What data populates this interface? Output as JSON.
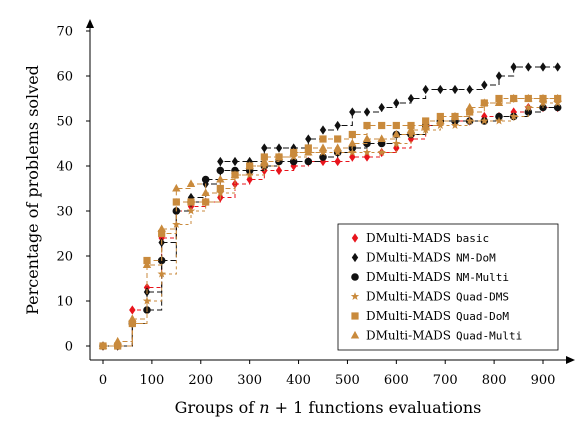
{
  "chart_data": {
    "type": "line",
    "title": "",
    "xlabel": "Groups of n + 1 functions evaluations",
    "xlabel_parts": [
      "Groups of ",
      "n",
      " + 1 functions evaluations"
    ],
    "ylabel": "Percentage of problems solved",
    "xlim": [
      -30,
      960
    ],
    "ylim": [
      -3,
      72
    ],
    "xticks": [
      0,
      100,
      200,
      300,
      400,
      500,
      600,
      700,
      800,
      900
    ],
    "yticks": [
      0,
      10,
      20,
      30,
      40,
      50,
      60,
      70
    ],
    "grid": false,
    "legend_position": "lower-right",
    "series": [
      {
        "name_prefix": "DMulti-MADS",
        "name_code": "basic",
        "color": "#e8141c",
        "marker": "diamond",
        "dash": "4,3",
        "points": [
          [
            0,
            0
          ],
          [
            30,
            0
          ],
          [
            60,
            8
          ],
          [
            90,
            13
          ],
          [
            120,
            24
          ],
          [
            150,
            30
          ],
          [
            180,
            31
          ],
          [
            210,
            32
          ],
          [
            240,
            33
          ],
          [
            270,
            36
          ],
          [
            300,
            37
          ],
          [
            330,
            39
          ],
          [
            360,
            39
          ],
          [
            390,
            40
          ],
          [
            420,
            41
          ],
          [
            450,
            41
          ],
          [
            480,
            41
          ],
          [
            510,
            42
          ],
          [
            540,
            42
          ],
          [
            570,
            43
          ],
          [
            600,
            44
          ],
          [
            630,
            46
          ],
          [
            660,
            49
          ],
          [
            690,
            50
          ],
          [
            720,
            50
          ],
          [
            750,
            50
          ],
          [
            780,
            51
          ],
          [
            810,
            51
          ],
          [
            840,
            52
          ],
          [
            870,
            53
          ],
          [
            900,
            53
          ],
          [
            930,
            53
          ],
          [
            960,
            54
          ]
        ]
      },
      {
        "name_prefix": "DMulti-MADS",
        "name_code": "NM-DoM",
        "color": "#111111",
        "marker": "diamond",
        "dash": "6,3",
        "points": [
          [
            0,
            0
          ],
          [
            30,
            0
          ],
          [
            60,
            5
          ],
          [
            90,
            12
          ],
          [
            120,
            23
          ],
          [
            150,
            30
          ],
          [
            180,
            33
          ],
          [
            210,
            36
          ],
          [
            240,
            41
          ],
          [
            270,
            41
          ],
          [
            300,
            41
          ],
          [
            330,
            44
          ],
          [
            360,
            44
          ],
          [
            390,
            44
          ],
          [
            420,
            46
          ],
          [
            450,
            48
          ],
          [
            480,
            49
          ],
          [
            510,
            52
          ],
          [
            540,
            52
          ],
          [
            570,
            53
          ],
          [
            600,
            54
          ],
          [
            630,
            55
          ],
          [
            660,
            57
          ],
          [
            690,
            57
          ],
          [
            720,
            57
          ],
          [
            750,
            57
          ],
          [
            780,
            58
          ],
          [
            810,
            60
          ],
          [
            840,
            62
          ],
          [
            870,
            62
          ],
          [
            900,
            62
          ],
          [
            930,
            62
          ],
          [
            960,
            62
          ]
        ]
      },
      {
        "name_prefix": "DMulti-MADS",
        "name_code": "NM-Multi",
        "color": "#111111",
        "marker": "circle",
        "dash": "6,3",
        "points": [
          [
            0,
            0
          ],
          [
            30,
            0
          ],
          [
            60,
            5
          ],
          [
            90,
            8
          ],
          [
            120,
            19
          ],
          [
            150,
            30
          ],
          [
            180,
            32
          ],
          [
            210,
            37
          ],
          [
            240,
            39
          ],
          [
            270,
            39
          ],
          [
            300,
            39
          ],
          [
            330,
            40
          ],
          [
            360,
            41
          ],
          [
            390,
            41
          ],
          [
            420,
            41
          ],
          [
            450,
            42
          ],
          [
            480,
            43
          ],
          [
            510,
            44
          ],
          [
            540,
            45
          ],
          [
            570,
            45
          ],
          [
            600,
            47
          ],
          [
            630,
            47
          ],
          [
            660,
            49
          ],
          [
            690,
            50
          ],
          [
            720,
            50
          ],
          [
            750,
            50
          ],
          [
            780,
            50
          ],
          [
            810,
            51
          ],
          [
            840,
            51
          ],
          [
            870,
            52
          ],
          [
            900,
            53
          ],
          [
            930,
            53
          ],
          [
            960,
            53
          ]
        ]
      },
      {
        "name_prefix": "DMulti-MADS",
        "name_code": "Quad-DMS",
        "color": "#c98a3c",
        "marker": "star",
        "dash": "3,3",
        "points": [
          [
            0,
            0
          ],
          [
            30,
            0
          ],
          [
            60,
            5
          ],
          [
            90,
            10
          ],
          [
            120,
            16
          ],
          [
            150,
            27
          ],
          [
            180,
            30
          ],
          [
            210,
            32
          ],
          [
            240,
            34
          ],
          [
            270,
            38
          ],
          [
            300,
            38
          ],
          [
            330,
            40
          ],
          [
            360,
            42
          ],
          [
            390,
            42
          ],
          [
            420,
            43
          ],
          [
            450,
            43
          ],
          [
            480,
            43
          ],
          [
            510,
            43
          ],
          [
            540,
            43
          ],
          [
            570,
            43
          ],
          [
            600,
            45
          ],
          [
            630,
            47
          ],
          [
            660,
            48
          ],
          [
            690,
            49
          ],
          [
            720,
            49
          ],
          [
            750,
            50
          ],
          [
            780,
            50
          ],
          [
            810,
            50
          ],
          [
            840,
            51
          ],
          [
            870,
            53
          ],
          [
            900,
            54
          ],
          [
            930,
            54
          ],
          [
            960,
            54
          ]
        ]
      },
      {
        "name_prefix": "DMulti-MADS",
        "name_code": "Quad-DoM",
        "color": "#c98a3c",
        "marker": "square",
        "dash": "5,3",
        "points": [
          [
            0,
            0
          ],
          [
            30,
            0
          ],
          [
            60,
            5
          ],
          [
            90,
            19
          ],
          [
            120,
            25
          ],
          [
            150,
            32
          ],
          [
            180,
            32
          ],
          [
            210,
            32
          ],
          [
            240,
            35
          ],
          [
            270,
            38
          ],
          [
            300,
            40
          ],
          [
            330,
            42
          ],
          [
            360,
            42
          ],
          [
            390,
            43
          ],
          [
            420,
            44
          ],
          [
            450,
            46
          ],
          [
            480,
            46
          ],
          [
            510,
            47
          ],
          [
            540,
            49
          ],
          [
            570,
            49
          ],
          [
            600,
            49
          ],
          [
            630,
            49
          ],
          [
            660,
            50
          ],
          [
            690,
            51
          ],
          [
            720,
            51
          ],
          [
            750,
            52
          ],
          [
            780,
            54
          ],
          [
            810,
            55
          ],
          [
            840,
            55
          ],
          [
            870,
            55
          ],
          [
            900,
            55
          ],
          [
            930,
            55
          ],
          [
            960,
            55
          ]
        ]
      },
      {
        "name_prefix": "DMulti-MADS",
        "name_code": "Quad-Multi",
        "color": "#c98a3c",
        "marker": "triangle",
        "dash": "5,3",
        "points": [
          [
            0,
            0
          ],
          [
            30,
            1
          ],
          [
            60,
            6
          ],
          [
            90,
            18
          ],
          [
            120,
            26
          ],
          [
            150,
            35
          ],
          [
            180,
            36
          ],
          [
            210,
            34
          ],
          [
            240,
            37
          ],
          [
            270,
            38
          ],
          [
            300,
            40
          ],
          [
            330,
            41
          ],
          [
            360,
            42
          ],
          [
            390,
            43
          ],
          [
            420,
            43
          ],
          [
            450,
            44
          ],
          [
            480,
            44
          ],
          [
            510,
            45
          ],
          [
            540,
            46
          ],
          [
            570,
            46
          ],
          [
            600,
            47
          ],
          [
            630,
            48
          ],
          [
            660,
            49
          ],
          [
            690,
            50
          ],
          [
            720,
            51
          ],
          [
            750,
            53
          ],
          [
            780,
            54
          ],
          [
            810,
            54
          ],
          [
            840,
            55
          ],
          [
            870,
            55
          ],
          [
            900,
            55
          ],
          [
            930,
            55
          ],
          [
            960,
            55
          ]
        ]
      }
    ]
  }
}
